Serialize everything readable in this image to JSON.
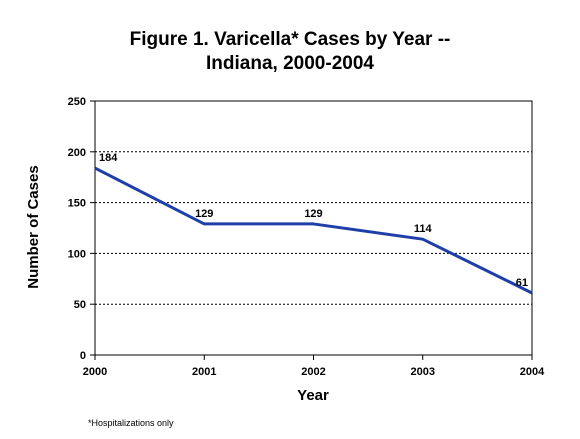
{
  "chart_data": {
    "type": "line",
    "title_line1": "Figure 1.  Varicella* Cases by Year --",
    "title_line2": "Indiana, 2000-2004",
    "xlabel": "Year",
    "ylabel": "Number of Cases",
    "x": [
      "2000",
      "2001",
      "2002",
      "2003",
      "2004"
    ],
    "series": [
      {
        "values": [
          184,
          129,
          129,
          114,
          61
        ],
        "color": "#1f3fa8"
      }
    ],
    "data_labels": [
      "184",
      "129",
      "129",
      "114",
      "61"
    ],
    "ylim": [
      0,
      250
    ],
    "yticks": [
      0,
      50,
      100,
      150,
      200,
      250
    ],
    "grid": "horizontal-dotted",
    "legend": "none"
  },
  "footnote": "*Hospitalizations only"
}
